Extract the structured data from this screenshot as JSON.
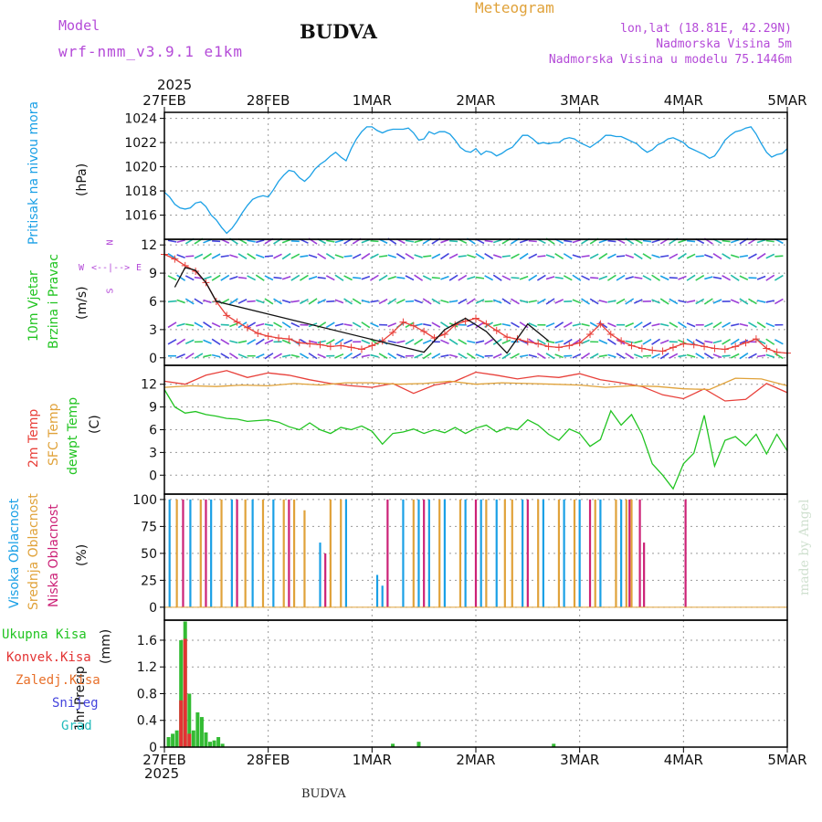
{
  "header": {
    "model_label": "Model",
    "model_name": "wrf-nmm_v3.9.1 e1km",
    "title": "BUDVA",
    "meteogram_label": "Meteogram",
    "lonlat": "lon,lat (18.81E, 42.29N)",
    "altitude": "Nadmorska Visina 5m",
    "model_altitude": "Nadmorska Visina u modelu 75.1446m",
    "credit": "made by Angel",
    "footer": "BUDVA"
  },
  "time_axis": {
    "year_top": "2025",
    "year_bottom": "2025",
    "labels": [
      "27FEB",
      "28FEB",
      "1MAR",
      "2MAR",
      "3MAR",
      "4MAR",
      "5MAR"
    ]
  },
  "colors": {
    "pressure": "#1aa0e6",
    "t2m": "#e8403a",
    "sfc": "#e0a23a",
    "dewpt": "#22c422",
    "high": "#1aa0e6",
    "mid": "#e0a23a",
    "low": "#cc2277",
    "precip": "#33bb33",
    "conv": "#e33333",
    "label_green": "#22c422",
    "label_purple": "#b44ad8"
  },
  "chart_data": [
    {
      "type": "line",
      "panel": "pressure",
      "ylabel_main": "Pritisak na nivou mora",
      "yunit": "(hPa)",
      "ylim": [
        1014,
        1024.5
      ],
      "yticks": [
        1016,
        1018,
        1020,
        1022,
        1024
      ],
      "grid": true,
      "series": [
        {
          "color": "#1aa0e6",
          "x": [
            0,
            0.05,
            0.1,
            0.15,
            0.2,
            0.25,
            0.3,
            0.35,
            0.4,
            0.45,
            0.5,
            0.55,
            0.6,
            0.65,
            0.7,
            0.75,
            0.8,
            0.85,
            0.9,
            0.95,
            1.0,
            1.05,
            1.1,
            1.15,
            1.2,
            1.25,
            1.3,
            1.35,
            1.4,
            1.45,
            1.5,
            1.55,
            1.6,
            1.65,
            1.7,
            1.75,
            1.8,
            1.85,
            1.9,
            1.95,
            2.0,
            2.05,
            2.1,
            2.15,
            2.2,
            2.25,
            2.3,
            2.35,
            2.4,
            2.45,
            2.5,
            2.55,
            2.6,
            2.65,
            2.7,
            2.75,
            2.8,
            2.85,
            2.9,
            2.95,
            3.0,
            3.05,
            3.1,
            3.15,
            3.2,
            3.25,
            3.3,
            3.35,
            3.4,
            3.45,
            3.5,
            3.55,
            3.6,
            3.65,
            3.7,
            3.75,
            3.8,
            3.85,
            3.9,
            3.95,
            4.0,
            4.05,
            4.1,
            4.15,
            4.2,
            4.25,
            4.3,
            4.35,
            4.4,
            4.45,
            4.5,
            4.55,
            4.6,
            4.65,
            4.7,
            4.75,
            4.8,
            4.85,
            4.9,
            4.95,
            5.0,
            5.05,
            5.1,
            5.15,
            5.2,
            5.25,
            5.3,
            5.35,
            5.4,
            5.45,
            5.5,
            5.55,
            5.6,
            5.65,
            5.7,
            5.75,
            5.8,
            5.85,
            5.9,
            5.95,
            6.0
          ],
          "y": [
            1017.9,
            1017.5,
            1016.9,
            1016.6,
            1016.5,
            1016.6,
            1017.0,
            1017.1,
            1016.7,
            1016.0,
            1015.6,
            1015.0,
            1014.5,
            1014.9,
            1015.5,
            1016.2,
            1016.8,
            1017.3,
            1017.5,
            1017.6,
            1017.5,
            1018.1,
            1018.8,
            1019.3,
            1019.7,
            1019.6,
            1019.1,
            1018.8,
            1019.2,
            1019.8,
            1020.2,
            1020.5,
            1020.9,
            1021.2,
            1020.8,
            1020.5,
            1021.5,
            1022.3,
            1022.9,
            1023.3,
            1023.3,
            1023.0,
            1022.8,
            1023.0,
            1023.1,
            1023.1,
            1023.1,
            1023.2,
            1022.8,
            1022.2,
            1022.3,
            1022.9,
            1022.7,
            1022.9,
            1022.9,
            1022.7,
            1022.2,
            1021.6,
            1021.3,
            1021.2,
            1021.5,
            1021.0,
            1021.3,
            1021.2,
            1020.9,
            1021.1,
            1021.4,
            1021.6,
            1022.1,
            1022.6,
            1022.6,
            1022.3,
            1021.9,
            1022.0,
            1021.9,
            1022.0,
            1022.0,
            1022.3,
            1022.4,
            1022.3,
            1022.0,
            1021.8,
            1021.6,
            1021.9,
            1022.2,
            1022.6,
            1022.6,
            1022.5,
            1022.5,
            1022.3,
            1022.1,
            1021.9,
            1021.5,
            1021.2,
            1021.4,
            1021.8,
            1022.0,
            1022.3,
            1022.4,
            1022.2,
            1022.0,
            1021.6,
            1021.4,
            1021.2,
            1021.0,
            1020.7,
            1020.9,
            1021.5,
            1022.2,
            1022.6,
            1022.9,
            1023.0,
            1023.2,
            1023.3,
            1022.7,
            1021.9,
            1021.2,
            1020.8,
            1021.0,
            1021.1,
            1021.5
          ]
        }
      ]
    },
    {
      "type": "line",
      "panel": "wind",
      "ylabel_main": "10m Vjetar",
      "ylabel_sub": "Brzina i Pravac",
      "yunit": "(m/s)",
      "ylim": [
        -0.8,
        12.6
      ],
      "yticks": [
        0,
        3,
        6,
        9,
        12
      ],
      "grid": true,
      "compass": {
        "n": "N",
        "s": "S",
        "w": "W",
        "e": "E"
      },
      "series": [
        {
          "name": "speed",
          "color": "#e8403a",
          "x": [
            0,
            0.1,
            0.2,
            0.3,
            0.4,
            0.5,
            0.6,
            0.7,
            0.8,
            0.9,
            1.0,
            1.1,
            1.2,
            1.3,
            1.4,
            1.5,
            1.6,
            1.7,
            1.8,
            1.9,
            2.0,
            2.1,
            2.2,
            2.3,
            2.4,
            2.5,
            2.6,
            2.7,
            2.8,
            2.9,
            3.0,
            3.1,
            3.2,
            3.3,
            3.4,
            3.5,
            3.6,
            3.7,
            3.8,
            3.9,
            4.0,
            4.1,
            4.2,
            4.3,
            4.4,
            4.5,
            4.6,
            4.7,
            4.8,
            4.9,
            5.0,
            5.1,
            5.2,
            5.3,
            5.4,
            5.5,
            5.6,
            5.7,
            5.8,
            5.9,
            6.0
          ],
          "y": [
            11.0,
            10.5,
            9.8,
            9.2,
            8.0,
            6.0,
            4.5,
            3.8,
            3.2,
            2.6,
            2.3,
            2.1,
            2.0,
            1.6,
            1.5,
            1.4,
            1.2,
            1.3,
            1.1,
            0.9,
            1.3,
            1.8,
            2.7,
            3.8,
            3.4,
            2.8,
            2.1,
            2.5,
            3.5,
            3.9,
            4.2,
            3.6,
            2.9,
            2.2,
            2.0,
            1.7,
            1.5,
            1.2,
            1.1,
            1.3,
            1.6,
            2.5,
            3.6,
            2.5,
            1.8,
            1.3,
            1.0,
            0.8,
            0.7,
            1.1,
            1.5,
            1.4,
            1.2,
            1.0,
            0.9,
            1.2,
            1.6,
            2.0,
            1.0,
            0.6,
            0.5
          ]
        },
        {
          "name": "gust",
          "color": "#111111",
          "x": [
            0.1,
            0.2,
            0.3,
            0.4,
            0.5,
            2.5,
            2.7,
            2.9,
            3.1,
            3.3,
            3.5,
            3.7
          ],
          "y": [
            7.5,
            9.6,
            9.3,
            8.0,
            6.0,
            0.6,
            3.0,
            4.2,
            2.8,
            0.5,
            3.6,
            1.8
          ]
        }
      ],
      "arrow_rows": [
        0.2,
        1.7,
        3.5,
        6.0,
        8.5,
        10.8,
        12.4
      ]
    },
    {
      "type": "line",
      "panel": "temperature",
      "ylabel_main": "2m Temp",
      "ylabel_sub": "SFC Temp",
      "ylabel_sub2": "dewpt Temp",
      "yunit": "(C)",
      "ylim": [
        -2.5,
        14.5
      ],
      "yticks": [
        0,
        3,
        6,
        9,
        12
      ],
      "grid": true,
      "series": [
        {
          "name": "2m Temp",
          "color": "#e8403a",
          "x": [
            0,
            0.2,
            0.4,
            0.6,
            0.8,
            1.0,
            1.2,
            1.4,
            1.6,
            1.8,
            2.0,
            2.2,
            2.4,
            2.6,
            2.8,
            3.0,
            3.2,
            3.4,
            3.6,
            3.8,
            4.0,
            4.2,
            4.4,
            4.6,
            4.8,
            5.0,
            5.2,
            5.4,
            5.6,
            5.8,
            6.0
          ],
          "y": [
            12.4,
            12.0,
            13.2,
            13.8,
            12.9,
            13.5,
            13.2,
            12.6,
            12.1,
            11.8,
            11.6,
            12.1,
            10.8,
            11.9,
            12.4,
            13.6,
            13.2,
            12.7,
            13.1,
            12.9,
            13.4,
            12.6,
            12.2,
            11.7,
            10.6,
            10.1,
            11.4,
            9.8,
            10.0,
            12.1,
            10.9
          ]
        },
        {
          "name": "SFC Temp",
          "color": "#e0a23a",
          "x": [
            0,
            0.25,
            0.5,
            0.75,
            1.0,
            1.25,
            1.5,
            1.75,
            2.0,
            2.25,
            2.5,
            2.75,
            3.0,
            3.25,
            3.5,
            3.75,
            4.0,
            4.25,
            4.5,
            4.75,
            5.0,
            5.25,
            5.5,
            5.75,
            6.0
          ],
          "y": [
            11.6,
            11.8,
            11.7,
            11.9,
            11.8,
            12.1,
            11.9,
            12.2,
            12.2,
            12.0,
            12.1,
            12.4,
            12.0,
            12.2,
            12.1,
            12.0,
            11.9,
            11.6,
            11.8,
            11.7,
            11.4,
            11.3,
            12.8,
            12.7,
            11.8
          ]
        },
        {
          "name": "dewpt Temp",
          "color": "#22c422",
          "x": [
            0,
            0.1,
            0.2,
            0.3,
            0.4,
            0.5,
            0.6,
            0.7,
            0.8,
            0.9,
            1.0,
            1.1,
            1.2,
            1.3,
            1.4,
            1.5,
            1.6,
            1.7,
            1.8,
            1.9,
            2.0,
            2.1,
            2.2,
            2.3,
            2.4,
            2.5,
            2.6,
            2.7,
            2.8,
            2.9,
            3.0,
            3.1,
            3.2,
            3.3,
            3.4,
            3.5,
            3.6,
            3.7,
            3.8,
            3.9,
            4.0,
            4.1,
            4.2,
            4.3,
            4.4,
            4.5,
            4.6,
            4.7,
            4.8,
            4.9,
            5.0,
            5.1,
            5.2,
            5.3,
            5.4,
            5.5,
            5.6,
            5.7,
            5.8,
            5.9,
            6.0
          ],
          "y": [
            11.3,
            9.0,
            8.2,
            8.4,
            8.0,
            7.8,
            7.5,
            7.4,
            7.1,
            7.2,
            7.3,
            7.0,
            6.4,
            6.0,
            6.9,
            6.0,
            5.5,
            6.3,
            6.0,
            6.5,
            5.8,
            4.1,
            5.5,
            5.7,
            6.1,
            5.5,
            6.0,
            5.6,
            6.3,
            5.5,
            6.2,
            6.6,
            5.7,
            6.3,
            6.0,
            7.3,
            6.6,
            5.4,
            4.6,
            6.1,
            5.5,
            3.8,
            4.7,
            8.5,
            6.6,
            8.0,
            5.4,
            1.5,
            0.0,
            -1.8,
            1.5,
            2.9,
            7.9,
            1.2,
            4.6,
            5.1,
            3.9,
            5.4,
            2.8,
            5.4,
            3.2
          ]
        }
      ]
    },
    {
      "type": "bar",
      "panel": "clouds",
      "ylabel_main": "Visoka Oblacnost",
      "ylabel_sub": "Srednja Oblacnost",
      "ylabel_sub2": "Niska Oblacnost",
      "yunit": "(%)",
      "ylim": [
        -12,
        105
      ],
      "yticks": [
        0,
        25,
        50,
        75,
        100
      ],
      "grid": true,
      "series": [
        {
          "name": "Visoka Oblacnost",
          "color": "#1aa0e6",
          "x": [
            0.05,
            0.25,
            0.45,
            0.65,
            0.85,
            1.05,
            1.5,
            1.75,
            2.05,
            2.1,
            2.3,
            2.45,
            2.55,
            2.7,
            2.9,
            3.05,
            3.2,
            3.45,
            3.65,
            3.85,
            4.0,
            4.2,
            4.4
          ],
          "values": [
            100,
            100,
            100,
            100,
            100,
            100,
            60,
            100,
            30,
            20,
            100,
            100,
            100,
            100,
            100,
            100,
            100,
            100,
            100,
            100,
            100,
            100,
            100
          ]
        },
        {
          "name": "Srednja Oblacnost",
          "color": "#e0a23a",
          "x": [
            0.12,
            0.35,
            0.55,
            0.78,
            0.95,
            1.15,
            1.25,
            1.35,
            1.6,
            1.7,
            2.4,
            2.65,
            2.85,
            3.1,
            3.35,
            3.6,
            3.8,
            3.95,
            4.15,
            4.35,
            4.45,
            4.5,
            3.28
          ],
          "values": [
            100,
            100,
            100,
            100,
            100,
            100,
            100,
            90,
            100,
            100,
            100,
            100,
            100,
            100,
            100,
            100,
            100,
            100,
            100,
            100,
            100,
            100,
            100
          ]
        },
        {
          "name": "Niska Oblacnost",
          "color": "#cc2277",
          "x": [
            0.18,
            0.4,
            0.7,
            1.2,
            1.55,
            2.15,
            2.5,
            3.0,
            3.5,
            4.1,
            4.48,
            4.58,
            4.62,
            5.02
          ],
          "values": [
            100,
            100,
            100,
            100,
            50,
            100,
            100,
            100,
            100,
            100,
            100,
            100,
            60,
            100
          ]
        }
      ]
    },
    {
      "type": "bar",
      "panel": "precip",
      "ylabel_main": "1hr Precip",
      "yunit": "(mm)",
      "ylim": [
        0,
        1.9
      ],
      "yticks": [
        0,
        0.4,
        0.8,
        1.2,
        1.6
      ],
      "grid": true,
      "legend_labels": [
        "Ukupna Kisa",
        "Konvek.Kisa",
        "Zaledj.Kisa",
        "Snijeg",
        "Grad"
      ],
      "series": [
        {
          "name": "Ukupna Kisa",
          "color": "#33bb33",
          "x": [
            0.04,
            0.08,
            0.12,
            0.16,
            0.2,
            0.24,
            0.28,
            0.32,
            0.36,
            0.4,
            0.44,
            0.48,
            0.52,
            0.56,
            2.2,
            2.45,
            3.75
          ],
          "values": [
            0.15,
            0.2,
            0.25,
            1.6,
            1.88,
            0.8,
            0.25,
            0.52,
            0.45,
            0.22,
            0.08,
            0.1,
            0.15,
            0.05,
            0.05,
            0.08,
            0.05
          ]
        },
        {
          "name": "Konvek.Kisa",
          "color": "#e33333",
          "x": [
            0.16,
            0.2,
            0.24
          ],
          "values": [
            0.7,
            1.62,
            0.2
          ]
        }
      ]
    }
  ]
}
